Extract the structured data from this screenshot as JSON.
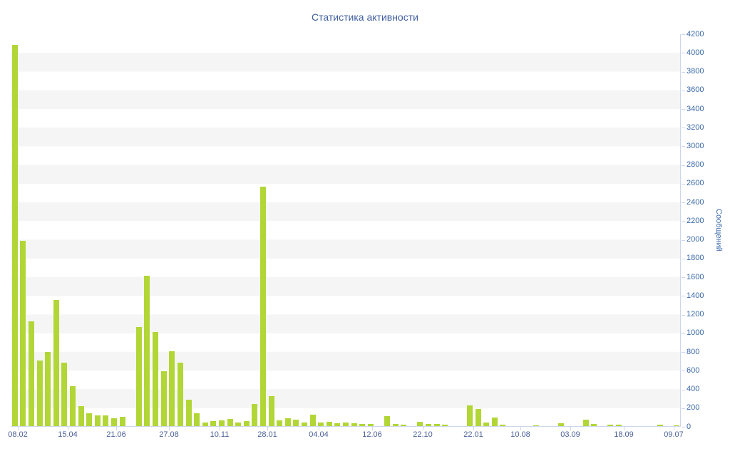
{
  "chart_data": {
    "type": "bar",
    "title": "Статистика активности",
    "xlabel": "",
    "ylabel": "Сообщений",
    "ylim": [
      0,
      4200
    ],
    "y_tick_step": 200,
    "grid": "alternating-bands",
    "legend": "none",
    "y_axis_position": "right",
    "y_tick_labels": [
      "0",
      "200",
      "400",
      "600",
      "800",
      "1000",
      "1200",
      "1400",
      "1600",
      "1800",
      "2000",
      "2200",
      "2400",
      "2600",
      "2800",
      "3000",
      "3200",
      "3400",
      "3600",
      "3800",
      "4000",
      "4200"
    ],
    "x_tick_labels": [
      "08.02",
      "15.04",
      "21.06",
      "27.08",
      "10.11",
      "28.01",
      "04.04",
      "12.06",
      "22.10",
      "22.01",
      "10.08",
      "03.09",
      "18.09",
      "09.07"
    ],
    "x_tick_positions_pct": [
      1.06,
      8.51,
      15.74,
      23.62,
      31.17,
      38.3,
      45.96,
      53.94,
      61.49,
      69.04,
      76.06,
      83.51,
      91.49,
      98.94
    ],
    "values": [
      4080,
      1980,
      1120,
      700,
      790,
      1350,
      680,
      430,
      215,
      140,
      115,
      115,
      85,
      100,
      0,
      1060,
      1610,
      1010,
      590,
      800,
      680,
      285,
      140,
      40,
      55,
      60,
      75,
      40,
      55,
      240,
      2560,
      320,
      60,
      85,
      70,
      35,
      125,
      35,
      45,
      30,
      35,
      30,
      25,
      20,
      0,
      105,
      25,
      15,
      0,
      45,
      25,
      20,
      15,
      0,
      0,
      220,
      185,
      35,
      90,
      15,
      0,
      0,
      0,
      10,
      0,
      0,
      30,
      0,
      0,
      70,
      20,
      0,
      15,
      15,
      0,
      0,
      0,
      0,
      15,
      0,
      10
    ],
    "colors": {
      "bar": "#b1d636",
      "stripe": "#f5f5f5",
      "axis": "#ccd6eb",
      "title_color": "#3f5e9e",
      "xlabel_color": "#4a5f96",
      "ylabel_color": "#3a68a8"
    }
  }
}
